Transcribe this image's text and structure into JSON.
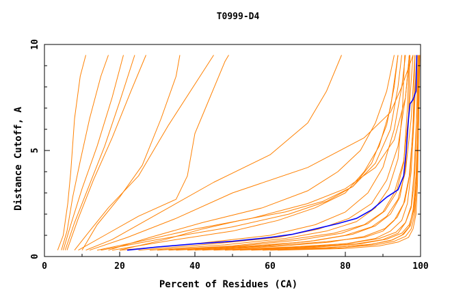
{
  "chart_data": {
    "type": "line",
    "title": "T0999-D4",
    "xlabel": "Percent of Residues (CA)",
    "ylabel": "Distance Cutoff, A",
    "xlim": [
      0,
      100
    ],
    "ylim": [
      0,
      10
    ],
    "x_ticks": [
      "0",
      "20",
      "40",
      "60",
      "80",
      "100"
    ],
    "y_ticks": [
      "0",
      "5",
      "10"
    ],
    "grid": false,
    "legend": "none",
    "background_series_color": "#ff8000",
    "highlight_series_color": "#0000ff",
    "highlight_series": {
      "points": [
        [
          22,
          0.3
        ],
        [
          30,
          0.45
        ],
        [
          40,
          0.6
        ],
        [
          50,
          0.72
        ],
        [
          60,
          0.9
        ],
        [
          66,
          1.05
        ],
        [
          72,
          1.3
        ],
        [
          78,
          1.55
        ],
        [
          83,
          1.8
        ],
        [
          87,
          2.2
        ],
        [
          89,
          2.5
        ],
        [
          91,
          2.8
        ],
        [
          94,
          3.15
        ],
        [
          95.5,
          3.8
        ],
        [
          96.2,
          5
        ],
        [
          96.8,
          6.5
        ],
        [
          97.2,
          7.2
        ],
        [
          98,
          7.4
        ],
        [
          98.8,
          7.8
        ],
        [
          99,
          9.5
        ]
      ]
    },
    "background_series": [
      {
        "points": [
          [
            3.5,
            0.3
          ],
          [
            5,
            1
          ],
          [
            6.2,
            2.5
          ],
          [
            7,
            4
          ],
          [
            8,
            6.5
          ],
          [
            9.5,
            8.5
          ],
          [
            11,
            9.5
          ]
        ]
      },
      {
        "points": [
          [
            4.5,
            0.3
          ],
          [
            6,
            1.2
          ],
          [
            7.5,
            2.8
          ],
          [
            9.5,
            4.5
          ],
          [
            12,
            6.5
          ],
          [
            15,
            8.5
          ],
          [
            17,
            9.5
          ]
        ]
      },
      {
        "points": [
          [
            5,
            0.3
          ],
          [
            7,
            1.5
          ],
          [
            10,
            3.2
          ],
          [
            14,
            5.2
          ],
          [
            18,
            7.5
          ],
          [
            21,
            9.5
          ]
        ]
      },
      {
        "points": [
          [
            5.5,
            0.3
          ],
          [
            8,
            1.6
          ],
          [
            12,
            3.4
          ],
          [
            16,
            5.2
          ],
          [
            20,
            7.3
          ],
          [
            24,
            9.5
          ]
        ]
      },
      {
        "points": [
          [
            6,
            0.3
          ],
          [
            9,
            1.8
          ],
          [
            13,
            3.6
          ],
          [
            18,
            5.6
          ],
          [
            23,
            7.8
          ],
          [
            27,
            9.5
          ]
        ]
      },
      {
        "points": [
          [
            8,
            0.3
          ],
          [
            12,
            1.2
          ],
          [
            17,
            2.3
          ],
          [
            25,
            3.8
          ],
          [
            33,
            6.2
          ],
          [
            41,
            8.4
          ],
          [
            45,
            9.5
          ]
        ]
      },
      {
        "points": [
          [
            10,
            0.3
          ],
          [
            14,
            1.5
          ],
          [
            20,
            2.8
          ],
          [
            26,
            4.3
          ],
          [
            31,
            6.5
          ],
          [
            35,
            8.5
          ],
          [
            36,
            9.5
          ]
        ]
      },
      {
        "points": [
          [
            9,
            0.3
          ],
          [
            16,
            1.0
          ],
          [
            25,
            1.9
          ],
          [
            35,
            2.7
          ],
          [
            38,
            3.8
          ],
          [
            40,
            5.8
          ],
          [
            44,
            7.5
          ],
          [
            48,
            9.2
          ],
          [
            49,
            9.5
          ]
        ]
      },
      {
        "points": [
          [
            11,
            0.3
          ],
          [
            18,
            0.8
          ],
          [
            28,
            1.8
          ],
          [
            45,
            3.5
          ],
          [
            60,
            4.8
          ],
          [
            70,
            6.3
          ],
          [
            75,
            7.8
          ],
          [
            79,
            9.5
          ]
        ]
      },
      {
        "points": [
          [
            12,
            0.3
          ],
          [
            22,
            0.9
          ],
          [
            35,
            1.8
          ],
          [
            50,
            3.0
          ],
          [
            70,
            4.2
          ],
          [
            85,
            5.6
          ],
          [
            92,
            6.8
          ],
          [
            95,
            8
          ],
          [
            98,
            9.5
          ]
        ]
      },
      {
        "points": [
          [
            14,
            0.3
          ],
          [
            25,
            0.7
          ],
          [
            40,
            1.3
          ],
          [
            55,
            1.8
          ],
          [
            70,
            2.5
          ],
          [
            80,
            3.2
          ],
          [
            88,
            4.2
          ],
          [
            93,
            5.5
          ],
          [
            96,
            7.5
          ],
          [
            97,
            9.5
          ]
        ]
      },
      {
        "points": [
          [
            15,
            0.3
          ],
          [
            30,
            0.8
          ],
          [
            50,
            1.4
          ],
          [
            65,
            2.0
          ],
          [
            75,
            2.6
          ],
          [
            82,
            3.3
          ],
          [
            87,
            4.4
          ],
          [
            91,
            6.2
          ],
          [
            93,
            8
          ],
          [
            94,
            9.5
          ]
        ]
      },
      {
        "points": [
          [
            18,
            0.3
          ],
          [
            35,
            0.8
          ],
          [
            50,
            1.2
          ],
          [
            62,
            1.7
          ],
          [
            72,
            2.3
          ],
          [
            80,
            3.0
          ],
          [
            85,
            4.0
          ],
          [
            89,
            5.2
          ],
          [
            92,
            7
          ],
          [
            94,
            9.5
          ]
        ]
      },
      {
        "points": [
          [
            20,
            0.3
          ],
          [
            40,
            0.6
          ],
          [
            60,
            1.0
          ],
          [
            72,
            1.5
          ],
          [
            80,
            2.1
          ],
          [
            86,
            3.0
          ],
          [
            90,
            4.2
          ],
          [
            93,
            6
          ],
          [
            95,
            8
          ],
          [
            96,
            9.5
          ]
        ]
      },
      {
        "points": [
          [
            25,
            0.3
          ],
          [
            45,
            0.6
          ],
          [
            62,
            0.9
          ],
          [
            73,
            1.3
          ],
          [
            81,
            1.8
          ],
          [
            87,
            2.5
          ],
          [
            91,
            3.6
          ],
          [
            94,
            5.2
          ],
          [
            96,
            7.5
          ],
          [
            97,
            9.5
          ]
        ]
      },
      {
        "points": [
          [
            30,
            0.3
          ],
          [
            50,
            0.5
          ],
          [
            65,
            0.8
          ],
          [
            77,
            1.1
          ],
          [
            85,
            1.5
          ],
          [
            90,
            2.1
          ],
          [
            93,
            3
          ],
          [
            95.5,
            4.5
          ],
          [
            97,
            7
          ],
          [
            98,
            9.5
          ]
        ]
      },
      {
        "points": [
          [
            35,
            0.3
          ],
          [
            55,
            0.5
          ],
          [
            70,
            0.7
          ],
          [
            80,
            1.0
          ],
          [
            87,
            1.4
          ],
          [
            91,
            1.9
          ],
          [
            94,
            2.7
          ],
          [
            96,
            4
          ],
          [
            97.5,
            6.5
          ],
          [
            98.5,
            9.5
          ]
        ]
      },
      {
        "points": [
          [
            40,
            0.3
          ],
          [
            60,
            0.5
          ],
          [
            75,
            0.7
          ],
          [
            85,
            0.9
          ],
          [
            90,
            1.2
          ],
          [
            93,
            1.7
          ],
          [
            95.5,
            2.5
          ],
          [
            97,
            3.8
          ],
          [
            98,
            6
          ],
          [
            99,
            9.5
          ]
        ]
      },
      {
        "points": [
          [
            45,
            0.3
          ],
          [
            65,
            0.45
          ],
          [
            80,
            0.6
          ],
          [
            88,
            0.85
          ],
          [
            92,
            1.2
          ],
          [
            95,
            1.7
          ],
          [
            96.5,
            2.5
          ],
          [
            97.5,
            4
          ],
          [
            98.3,
            6.5
          ],
          [
            99,
            9.5
          ]
        ]
      },
      {
        "points": [
          [
            50,
            0.3
          ],
          [
            70,
            0.45
          ],
          [
            83,
            0.6
          ],
          [
            90,
            0.8
          ],
          [
            94,
            1.1
          ],
          [
            96,
            1.6
          ],
          [
            97.5,
            2.4
          ],
          [
            98.3,
            4
          ],
          [
            99,
            6.8
          ],
          [
            99.5,
            9.5
          ]
        ]
      },
      {
        "points": [
          [
            55,
            0.3
          ],
          [
            75,
            0.42
          ],
          [
            86,
            0.55
          ],
          [
            92,
            0.75
          ],
          [
            95,
            1.0
          ],
          [
            97,
            1.4
          ],
          [
            98,
            2.2
          ],
          [
            98.8,
            3.8
          ],
          [
            99.3,
            6.5
          ],
          [
            99.7,
            9.5
          ]
        ]
      },
      {
        "points": [
          [
            60,
            0.3
          ],
          [
            78,
            0.4
          ],
          [
            88,
            0.55
          ],
          [
            93,
            0.72
          ],
          [
            96,
            0.95
          ],
          [
            97.5,
            1.3
          ],
          [
            98.5,
            2.0
          ],
          [
            99,
            3.5
          ],
          [
            99.5,
            6.5
          ],
          [
            99.8,
            9.5
          ]
        ]
      },
      {
        "points": [
          [
            38,
            0.3
          ],
          [
            58,
            0.5
          ],
          [
            72,
            0.75
          ],
          [
            82,
            1.05
          ],
          [
            88,
            1.45
          ],
          [
            92,
            2.0
          ],
          [
            94.5,
            2.8
          ],
          [
            96,
            4.2
          ],
          [
            96.8,
            6.5
          ],
          [
            97.2,
            9.5
          ]
        ]
      },
      {
        "points": [
          [
            28,
            0.3
          ],
          [
            48,
            0.55
          ],
          [
            64,
            0.85
          ],
          [
            75,
            1.2
          ],
          [
            83,
            1.65
          ],
          [
            88,
            2.3
          ],
          [
            91.5,
            3.2
          ],
          [
            94,
            4.6
          ],
          [
            95.2,
            7
          ],
          [
            95.8,
            9.5
          ]
        ]
      },
      {
        "points": [
          [
            33,
            0.3
          ],
          [
            52,
            0.5
          ],
          [
            68,
            0.78
          ],
          [
            79,
            1.1
          ],
          [
            86,
            1.55
          ],
          [
            90.5,
            2.15
          ],
          [
            93.5,
            3.0
          ],
          [
            95.5,
            4.4
          ],
          [
            96.5,
            7
          ],
          [
            97,
            9.5
          ]
        ]
      },
      {
        "points": [
          [
            42,
            0.3
          ],
          [
            62,
            0.48
          ],
          [
            76,
            0.68
          ],
          [
            85,
            0.95
          ],
          [
            90.5,
            1.32
          ],
          [
            93.8,
            1.85
          ],
          [
            95.8,
            2.6
          ],
          [
            97.2,
            3.9
          ],
          [
            98,
            6.2
          ],
          [
            98.5,
            9.5
          ]
        ]
      },
      {
        "points": [
          [
            48,
            0.3
          ],
          [
            68,
            0.45
          ],
          [
            81,
            0.62
          ],
          [
            89,
            0.85
          ],
          [
            93.5,
            1.15
          ],
          [
            96,
            1.6
          ],
          [
            97.5,
            2.3
          ],
          [
            98.4,
            3.6
          ],
          [
            98.9,
            6.2
          ],
          [
            99.3,
            9.5
          ]
        ]
      },
      {
        "points": [
          [
            52,
            0.3
          ],
          [
            72,
            0.44
          ],
          [
            84,
            0.6
          ],
          [
            91,
            0.82
          ],
          [
            95,
            1.1
          ],
          [
            97,
            1.5
          ],
          [
            98.2,
            2.2
          ],
          [
            98.9,
            3.6
          ],
          [
            99.2,
            6.4
          ],
          [
            99.5,
            9.5
          ]
        ]
      },
      {
        "points": [
          [
            20,
            0.3
          ],
          [
            32,
            0.8
          ],
          [
            42,
            1.3
          ],
          [
            52,
            1.7
          ],
          [
            64,
            2.1
          ],
          [
            74,
            2.6
          ],
          [
            82,
            3.3
          ],
          [
            88,
            4.4
          ],
          [
            92,
            6
          ],
          [
            94,
            8
          ],
          [
            95,
            9.5
          ]
        ]
      },
      {
        "points": [
          [
            17,
            0.3
          ],
          [
            28,
            0.9
          ],
          [
            42,
            1.6
          ],
          [
            58,
            2.3
          ],
          [
            70,
            3.1
          ],
          [
            78,
            4.0
          ],
          [
            84,
            5.0
          ],
          [
            88,
            6.3
          ],
          [
            91,
            7.8
          ],
          [
            93,
            9.5
          ]
        ]
      },
      {
        "points": [
          [
            62,
            0.3
          ],
          [
            80,
            0.38
          ],
          [
            89,
            0.5
          ],
          [
            94,
            0.68
          ],
          [
            96.8,
            0.9
          ],
          [
            98,
            1.3
          ],
          [
            98.8,
            2.0
          ],
          [
            99.2,
            3.4
          ],
          [
            99.5,
            6.5
          ],
          [
            99.7,
            9.5
          ]
        ]
      },
      {
        "points": [
          [
            58,
            0.3
          ],
          [
            76,
            0.42
          ],
          [
            87,
            0.58
          ],
          [
            92.5,
            0.78
          ],
          [
            95.5,
            1.05
          ],
          [
            97.3,
            1.45
          ],
          [
            98.3,
            2.1
          ],
          [
            98.9,
            3.5
          ],
          [
            99.3,
            6.5
          ],
          [
            99.6,
            9.5
          ]
        ]
      }
    ]
  }
}
